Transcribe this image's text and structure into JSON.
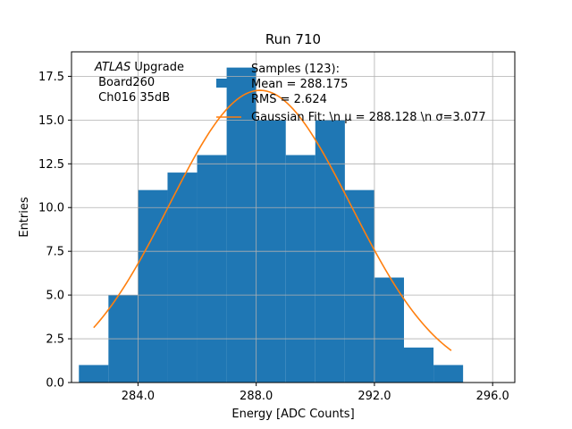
{
  "chart_data": {
    "type": "bar",
    "title": "Run 710",
    "xlabel": "Energy [ADC Counts]",
    "ylabel": "Entries",
    "xlim": [
      281.75,
      296.75
    ],
    "ylim": [
      0,
      18.9
    ],
    "grid": true,
    "x_ticks": [
      284.0,
      288.0,
      292.0,
      296.0
    ],
    "x_tick_labels": [
      "284.0",
      "288.0",
      "292.0",
      "296.0"
    ],
    "y_ticks": [
      0,
      2.5,
      5,
      7.5,
      10,
      12.5,
      15,
      17.5
    ],
    "y_tick_labels": [
      "0.0",
      "2.5",
      "5.0",
      "7.5",
      "10.0",
      "12.5",
      "15.0",
      "17.5"
    ],
    "bin_edges": [
      282,
      283,
      284,
      285,
      286,
      287,
      288,
      289,
      290,
      291,
      292,
      293,
      294,
      295
    ],
    "counts": [
      1,
      5,
      11,
      12,
      13,
      18,
      15,
      13,
      15,
      11,
      6,
      2,
      1
    ],
    "bar_color": "#1f77b4",
    "fit": {
      "name": "Gaussian Fit: \\n $\\mu$ = 288.128 \\n $\\sigma$=3.077",
      "mu": 288.128,
      "sigma": 3.077,
      "amplitude": 16.7,
      "x_range": [
        282.5,
        294.6
      ],
      "color": "#ff7f0e"
    },
    "legend": {
      "placement": "top-right",
      "entries": [
        {
          "label_lines": [
            "Samples (123):",
            " Mean = 288.175",
            " RMS = 2.624"
          ],
          "kind": "patch",
          "color": "#1f77b4"
        },
        {
          "label_lines": [
            "Gaussian Fit: \\n μ = 288.128 \\n σ=3.077"
          ],
          "kind": "line",
          "color": "#ff7f0e"
        }
      ]
    },
    "annotation": {
      "line1_italic": "ATLAS",
      "line1_rest": " Upgrade",
      "line2": " Board260",
      "line3": " Ch016 35dB"
    }
  }
}
